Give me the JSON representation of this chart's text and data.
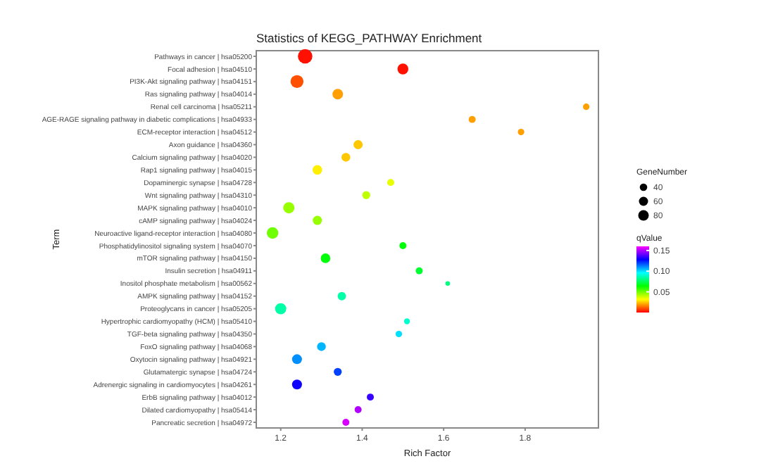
{
  "chart_data": {
    "type": "scatter",
    "title": "Statistics of KEGG_PATHWAY Enrichment",
    "xlabel": "Rich Factor",
    "ylabel": "Term",
    "legend_title": "GeneNumber",
    "clabel": "qValue",
    "categories": [
      "Pathways in cancer | hsa05200",
      "Focal adhesion | hsa04510",
      "PI3K-Akt signaling pathway | hsa04151",
      "Ras signaling pathway | hsa04014",
      "Renal cell carcinoma | hsa05211",
      "AGE-RAGE signaling pathway in diabetic complications | hsa04933",
      "ECM-receptor interaction | hsa04512",
      "Axon guidance | hsa04360",
      "Calcium signaling pathway | hsa04020",
      "Rap1 signaling pathway | hsa04015",
      "Dopaminergic synapse | hsa04728",
      "Wnt signaling pathway | hsa04310",
      "MAPK signaling pathway | hsa04010",
      "cAMP signaling pathway | hsa04024",
      "Neuroactive ligand-receptor interaction | hsa04080",
      "Phosphatidylinositol signaling system | hsa04070",
      "mTOR signaling pathway | hsa04150",
      "Insulin secretion | hsa04911",
      "Inositol phosphate metabolism | hsa00562",
      "AMPK signaling pathway | hsa04152",
      "Proteoglycans in cancer | hsa05205",
      "Hypertrophic cardiomyopathy (HCM) | hsa05410",
      "TGF-beta signaling pathway | hsa04350",
      "FoxO signaling pathway | hsa04068",
      "Oxytocin signaling pathway | hsa04921",
      "Glutamatergic synapse | hsa04724",
      "Adrenergic signaling in cardiomyocytes | hsa04261",
      "ErbB signaling pathway | hsa04012",
      "Dilated cardiomyopathy | hsa05414",
      "Pancreatic secretion | hsa04972"
    ],
    "values": [
      1.26,
      1.5,
      1.24,
      1.34,
      1.95,
      1.67,
      1.79,
      1.39,
      1.36,
      1.29,
      1.47,
      1.41,
      1.22,
      1.29,
      1.18,
      1.5,
      1.31,
      1.54,
      1.61,
      1.35,
      1.2,
      1.51,
      1.49,
      1.3,
      1.24,
      1.34,
      1.24,
      1.42,
      1.39,
      1.36
    ],
    "sizes": [
      150,
      85,
      120,
      80,
      30,
      35,
      30,
      60,
      55,
      65,
      35,
      45,
      90,
      60,
      95,
      35,
      65,
      35,
      15,
      50,
      90,
      25,
      30,
      55,
      70,
      45,
      70,
      35,
      35,
      35
    ],
    "size_legend": [
      40,
      60,
      80
    ],
    "cvalues": [
      0.002,
      0.002,
      0.01,
      0.02,
      0.02,
      0.02,
      0.02,
      0.025,
      0.025,
      0.03,
      0.035,
      0.04,
      0.045,
      0.045,
      0.05,
      0.065,
      0.065,
      0.07,
      0.08,
      0.085,
      0.085,
      0.09,
      0.1,
      0.105,
      0.11,
      0.12,
      0.13,
      0.135,
      0.15,
      0.155
    ],
    "clim": [
      0,
      0.16
    ],
    "cticks": [
      0.05,
      {
        "value": 0.1,
        "label": "0.10"
      },
      0.15
    ],
    "xlim": [
      1.14,
      1.98
    ],
    "xticks": [
      1.2,
      1.4,
      1.6,
      1.8
    ],
    "orientation": "horizontal"
  }
}
